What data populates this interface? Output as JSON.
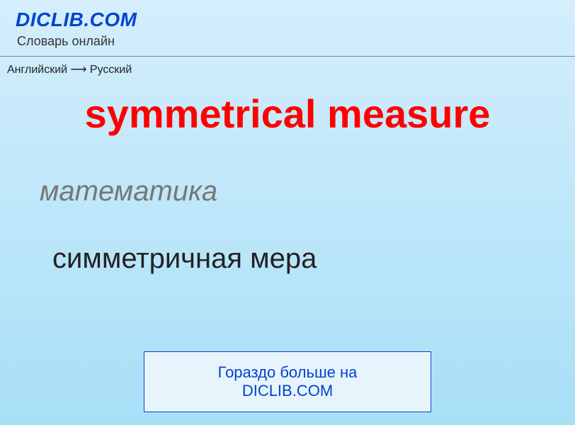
{
  "header": {
    "site_title": "DICLIB.COM",
    "subtitle": "Словарь онлайн"
  },
  "breadcrumb": {
    "text": "Английский ⟶ Русский"
  },
  "content": {
    "term": "symmetrical measure",
    "category": "математика",
    "translation": "симметричная мера"
  },
  "cta": {
    "text": "Гораздо больше на DICLIB.COM"
  },
  "colors": {
    "brand_blue": "#0044cc",
    "term_red": "#ff0000",
    "category_gray": "#777777",
    "text_dark": "#222222",
    "bg_top": "#d4eefc",
    "bg_bottom": "#a8dff7"
  }
}
